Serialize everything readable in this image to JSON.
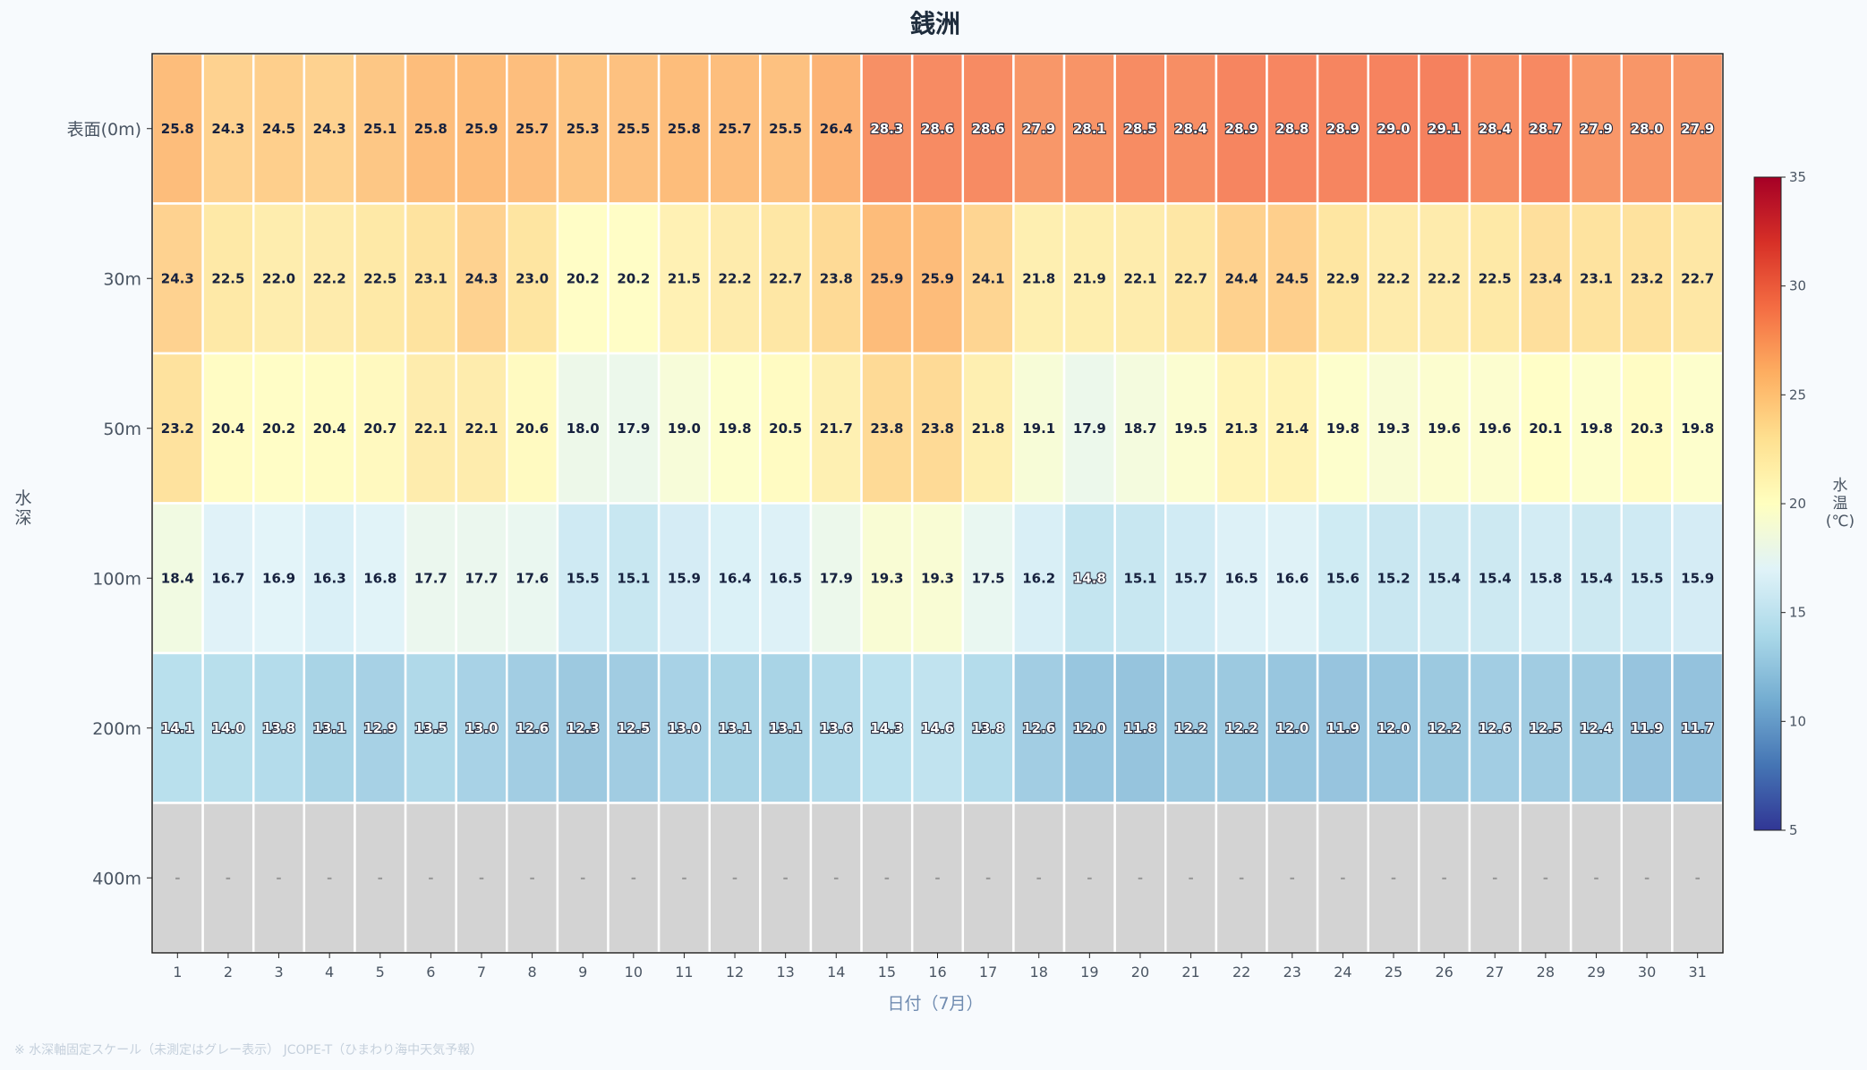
{
  "chart_data": {
    "type": "heatmap",
    "title": "銭洲",
    "xlabel": "日付（7月）",
    "ylabel": "水深",
    "colorbar_label": "水温(℃)",
    "colorscale": "RdYlBu_r",
    "clim": [
      5,
      35
    ],
    "colorbar_ticks": [
      5,
      10,
      15,
      20,
      25,
      30,
      35
    ],
    "missing_color": "#d3d3d3",
    "missing_label": "-",
    "footnote": "※ 水深軸固定スケール（未測定はグレー表示） JCOPE-T（ひまわり海中天気予報）",
    "x": [
      1,
      2,
      3,
      4,
      5,
      6,
      7,
      8,
      9,
      10,
      11,
      12,
      13,
      14,
      15,
      16,
      17,
      18,
      19,
      20,
      21,
      22,
      23,
      24,
      25,
      26,
      27,
      28,
      29,
      30,
      31
    ],
    "y": [
      "表面(0m)",
      "30m",
      "50m",
      "100m",
      "200m",
      "400m"
    ],
    "z": [
      [
        25.8,
        24.3,
        24.5,
        24.3,
        25.1,
        25.8,
        25.9,
        25.7,
        25.3,
        25.5,
        25.8,
        25.7,
        25.5,
        26.4,
        28.3,
        28.6,
        28.6,
        27.9,
        28.1,
        28.5,
        28.4,
        28.9,
        28.8,
        28.9,
        29.0,
        29.1,
        28.4,
        28.7,
        27.9,
        28.0,
        27.9
      ],
      [
        24.3,
        22.5,
        22.0,
        22.2,
        22.5,
        23.1,
        24.3,
        23.0,
        20.2,
        20.2,
        21.5,
        22.2,
        22.7,
        23.8,
        25.9,
        25.9,
        24.1,
        21.8,
        21.9,
        22.1,
        22.7,
        24.4,
        24.5,
        22.9,
        22.2,
        22.2,
        22.5,
        23.4,
        23.1,
        23.2,
        22.7
      ],
      [
        23.2,
        20.4,
        20.2,
        20.4,
        20.7,
        22.1,
        22.1,
        20.6,
        18.0,
        17.9,
        19.0,
        19.8,
        20.5,
        21.7,
        23.8,
        23.8,
        21.8,
        19.1,
        17.9,
        18.7,
        19.5,
        21.3,
        21.4,
        19.8,
        19.3,
        19.6,
        19.6,
        20.1,
        19.8,
        20.3,
        19.8
      ],
      [
        18.4,
        16.7,
        16.9,
        16.3,
        16.8,
        17.7,
        17.7,
        17.6,
        15.5,
        15.1,
        15.9,
        16.4,
        16.5,
        17.9,
        19.3,
        19.3,
        17.5,
        16.2,
        14.8,
        15.1,
        15.7,
        16.5,
        16.6,
        15.6,
        15.2,
        15.4,
        15.4,
        15.8,
        15.4,
        15.5,
        15.9
      ],
      [
        14.1,
        14.0,
        13.8,
        13.1,
        12.9,
        13.5,
        13.0,
        12.6,
        12.3,
        12.5,
        13.0,
        13.1,
        13.1,
        13.6,
        14.3,
        14.6,
        13.8,
        12.6,
        12.0,
        11.8,
        12.2,
        12.2,
        12.0,
        11.9,
        12.0,
        12.2,
        12.6,
        12.5,
        12.4,
        11.9,
        11.7
      ],
      [
        null,
        null,
        null,
        null,
        null,
        null,
        null,
        null,
        null,
        null,
        null,
        null,
        null,
        null,
        null,
        null,
        null,
        null,
        null,
        null,
        null,
        null,
        null,
        null,
        null,
        null,
        null,
        null,
        null,
        null,
        null
      ]
    ]
  }
}
